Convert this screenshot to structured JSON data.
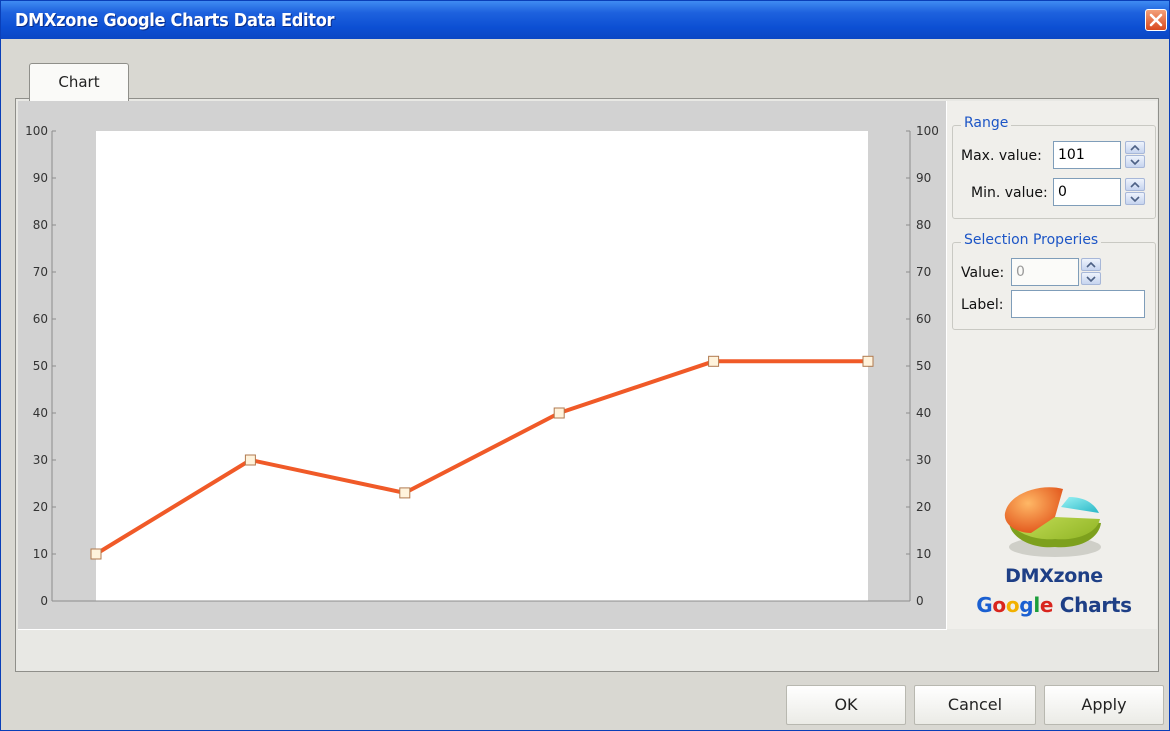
{
  "window": {
    "title": "DMXzone Google Charts Data Editor"
  },
  "tabs": [
    {
      "label": "Chart",
      "active": true
    }
  ],
  "chart_data": {
    "type": "line",
    "x": [
      1,
      2,
      3,
      4,
      5,
      6
    ],
    "values": [
      10,
      30,
      23,
      40,
      51,
      51
    ],
    "ylim": [
      0,
      100
    ],
    "yticks": [
      "0",
      "10",
      "20",
      "30",
      "40",
      "50",
      "60",
      "70",
      "80",
      "90",
      "100"
    ],
    "line_color": "#f05a28",
    "marker": "square",
    "grid": false
  },
  "range": {
    "legend": "Range",
    "max_label": "Max. value:",
    "max_value": "101",
    "min_label": "Min. value:",
    "min_value": "0"
  },
  "selection": {
    "legend": "Selection Properies",
    "value_label": "Value:",
    "value": "0",
    "label_label": "Label:",
    "label_value": ""
  },
  "logo": {
    "icon": "pie-chart-logo-icon",
    "line1": "DMXzone",
    "line2": [
      "G",
      "o",
      "o",
      "g",
      "l",
      "e"
    ],
    "line2_rest": " Charts"
  },
  "buttons": {
    "ok": "OK",
    "cancel": "Cancel",
    "apply": "Apply"
  },
  "colors": {
    "title_bar": "#0c4fd3",
    "accent": "#1c55c6",
    "google": [
      "#1a5fd1",
      "#d9251d",
      "#f2b100",
      "#1a5fd1",
      "#1b9e3b",
      "#d9251d"
    ]
  }
}
